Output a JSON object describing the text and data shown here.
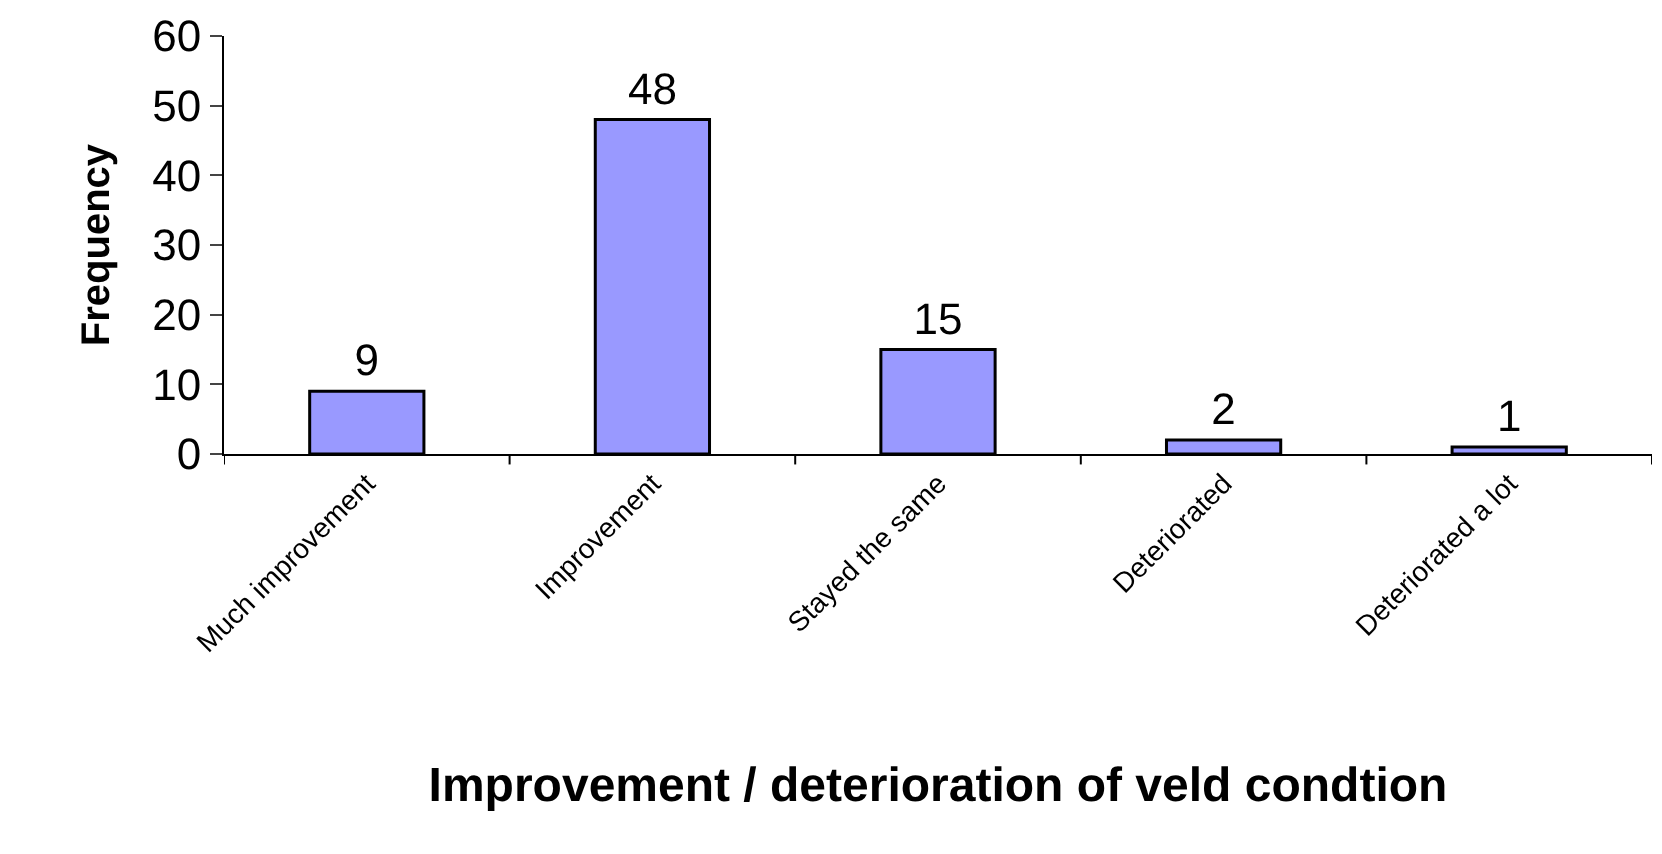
{
  "chart_data": {
    "type": "bar",
    "xlabel": "Improvement / deterioration of veld condtion",
    "ylabel": "Frequency",
    "categories": [
      "Much improvement",
      "Improvement",
      "Stayed the same",
      "Deteriorated",
      "Deteriorated a lot"
    ],
    "values": [
      9,
      48,
      15,
      2,
      1
    ],
    "color": "#9999ff",
    "ylim": [
      0,
      60
    ],
    "yticks": [
      0,
      10,
      20,
      30,
      40,
      50,
      60
    ],
    "legend": false,
    "data_labels": true
  }
}
